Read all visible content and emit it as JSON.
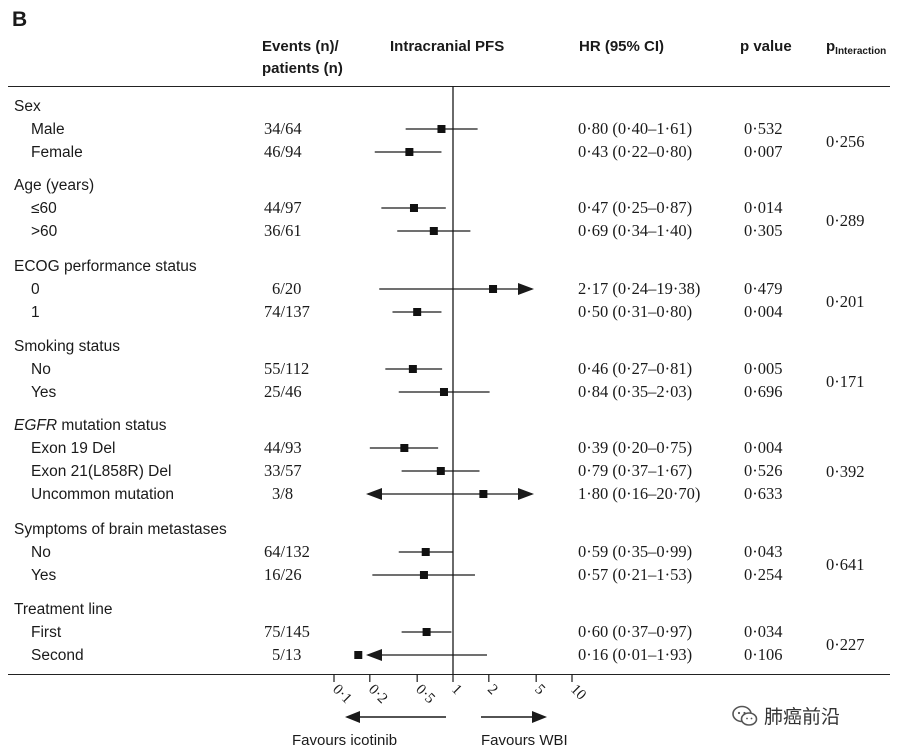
{
  "panel_label": "B",
  "headers": {
    "events": "Events (n)/",
    "events2": "patients (n)",
    "pfs": "Intracranial PFS",
    "hr": "HR (95% CI)",
    "pvalue": "p value",
    "pint": "p",
    "pint_sub": "Interaction"
  },
  "favours_left": "Favours icotinib",
  "favours_right": "Favours WBI",
  "watermark": "肺癌前沿",
  "chart_data": {
    "type": "forest",
    "xscale": "log",
    "xticks": [
      0.1,
      0.2,
      0.5,
      1,
      2,
      5,
      10
    ],
    "xtick_labels": [
      "0·1",
      "0·2",
      "0·5",
      "1",
      "2",
      "5",
      "10"
    ],
    "reference_line": 1,
    "groups": [
      {
        "label": "Sex",
        "italic": false,
        "p_interaction": "0·256",
        "rows": [
          {
            "label": "Male",
            "events": "34/64",
            "hr": 0.8,
            "lo": 0.4,
            "hi": 1.61,
            "hr_text": "0·80 (0·40–1·61)",
            "p": "0·532"
          },
          {
            "label": "Female",
            "events": "46/94",
            "hr": 0.43,
            "lo": 0.22,
            "hi": 0.8,
            "hr_text": "0·43 (0·22–0·80)",
            "p": "0·007"
          }
        ]
      },
      {
        "label": "Age (years)",
        "italic": false,
        "p_interaction": "0·289",
        "rows": [
          {
            "label": "≤60",
            "events": "44/97",
            "hr": 0.47,
            "lo": 0.25,
            "hi": 0.87,
            "hr_text": "0·47 (0·25–0·87)",
            "p": "0·014"
          },
          {
            "label": ">60",
            "events": "36/61",
            "hr": 0.69,
            "lo": 0.34,
            "hi": 1.4,
            "hr_text": "0·69 (0·34–1·40)",
            "p": "0·305"
          }
        ]
      },
      {
        "label": "ECOG performance status",
        "italic": false,
        "p_interaction": "0·201",
        "rows": [
          {
            "label": "0",
            "events": "6/20",
            "hr": 2.17,
            "lo": 0.24,
            "hi": 19.38,
            "hr_text": "2·17 (0·24–19·38)",
            "p": "0·479"
          },
          {
            "label": "1",
            "events": "74/137",
            "hr": 0.5,
            "lo": 0.31,
            "hi": 0.8,
            "hr_text": "0·50 (0·31–0·80)",
            "p": "0·004"
          }
        ]
      },
      {
        "label": "Smoking status",
        "italic": false,
        "p_interaction": "0·171",
        "rows": [
          {
            "label": "No",
            "events": "55/112",
            "hr": 0.46,
            "lo": 0.27,
            "hi": 0.81,
            "hr_text": "0·46 (0·27–0·81)",
            "p": "0·005"
          },
          {
            "label": "Yes",
            "events": "25/46",
            "hr": 0.84,
            "lo": 0.35,
            "hi": 2.03,
            "hr_text": "0·84 (0·35–2·03)",
            "p": "0·696"
          }
        ]
      },
      {
        "label_italic": "EGFR",
        "label": " mutation status",
        "italic": true,
        "p_interaction": "0·392",
        "rows": [
          {
            "label": "Exon 19 Del",
            "events": "44/93",
            "hr": 0.39,
            "lo": 0.2,
            "hi": 0.75,
            "hr_text": "0·39 (0·20–0·75)",
            "p": "0·004"
          },
          {
            "label": "Exon 21(L858R) Del",
            "events": "33/57",
            "hr": 0.79,
            "lo": 0.37,
            "hi": 1.67,
            "hr_text": "0·79 (0·37–1·67)",
            "p": "0·526"
          },
          {
            "label": "Uncommon mutation",
            "events": "3/8",
            "hr": 1.8,
            "lo": 0.16,
            "hi": 20.7,
            "hr_text": "1·80 (0·16–20·70)",
            "p": "0·633"
          }
        ]
      },
      {
        "label": "Symptoms of brain metastases",
        "italic": false,
        "p_interaction": "0·641",
        "rows": [
          {
            "label": "No",
            "events": "64/132",
            "hr": 0.59,
            "lo": 0.35,
            "hi": 0.99,
            "hr_text": "0·59 (0·35–0·99)",
            "p": "0·043"
          },
          {
            "label": "Yes",
            "events": "16/26",
            "hr": 0.57,
            "lo": 0.21,
            "hi": 1.53,
            "hr_text": "0·57 (0·21–1·53)",
            "p": "0·254"
          }
        ]
      },
      {
        "label": "Treatment line",
        "italic": false,
        "p_interaction": "0·227",
        "rows": [
          {
            "label": "First",
            "events": "75/145",
            "hr": 0.6,
            "lo": 0.37,
            "hi": 0.97,
            "hr_text": "0·60 (0·37–0·97)",
            "p": "0·034"
          },
          {
            "label": "Second",
            "events": "5/13",
            "hr": 0.16,
            "lo": 0.01,
            "hi": 1.93,
            "hr_text": "0·16 (0·01–1·93)",
            "p": "0·106"
          }
        ]
      }
    ]
  }
}
